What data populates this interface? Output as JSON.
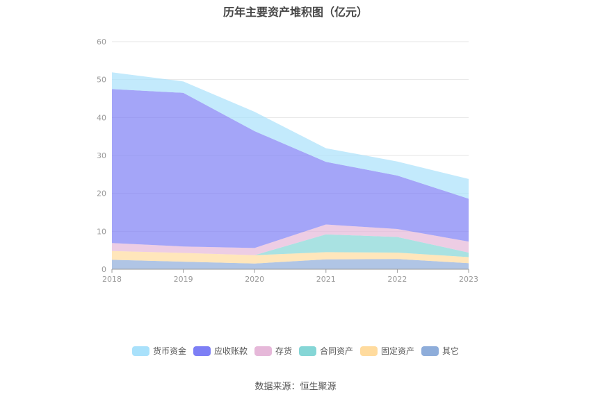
{
  "chart_data": {
    "type": "area",
    "stacked": true,
    "title": "历年主要资产堆积图（亿元）",
    "x": [
      "2018",
      "2019",
      "2020",
      "2021",
      "2022",
      "2023"
    ],
    "yticks": [
      "0",
      "10",
      "20",
      "30",
      "40",
      "50",
      "60"
    ],
    "ylim": [
      0,
      60
    ],
    "grid": true,
    "legend_position": "bottom",
    "series": [
      {
        "name": "其它",
        "color": "#8eadda",
        "values": [
          2.5,
          2.0,
          1.5,
          2.6,
          2.7,
          1.6
        ]
      },
      {
        "name": "固定资产",
        "color": "#ffdb9e",
        "values": [
          2.3,
          2.3,
          2.2,
          1.9,
          1.7,
          1.6
        ]
      },
      {
        "name": "合同资产",
        "color": "#85d6d6",
        "values": [
          0.0,
          0.0,
          0.0,
          4.7,
          4.1,
          1.2
        ]
      },
      {
        "name": "存货",
        "color": "#e6b8d9",
        "values": [
          2.1,
          1.7,
          1.9,
          2.6,
          2.1,
          2.9
        ]
      },
      {
        "name": "应收账款",
        "color": "#7d7ff5",
        "values": [
          40.6,
          40.5,
          30.8,
          16.5,
          14.1,
          11.3
        ]
      },
      {
        "name": "货币资金",
        "color": "#a9e1fb",
        "values": [
          4.4,
          3.0,
          5.1,
          3.6,
          3.7,
          5.2
        ]
      }
    ],
    "legend_order": [
      "货币资金",
      "应收账款",
      "存货",
      "合同资产",
      "固定资产",
      "其它"
    ]
  },
  "source_text": "数据来源：恒生聚源"
}
